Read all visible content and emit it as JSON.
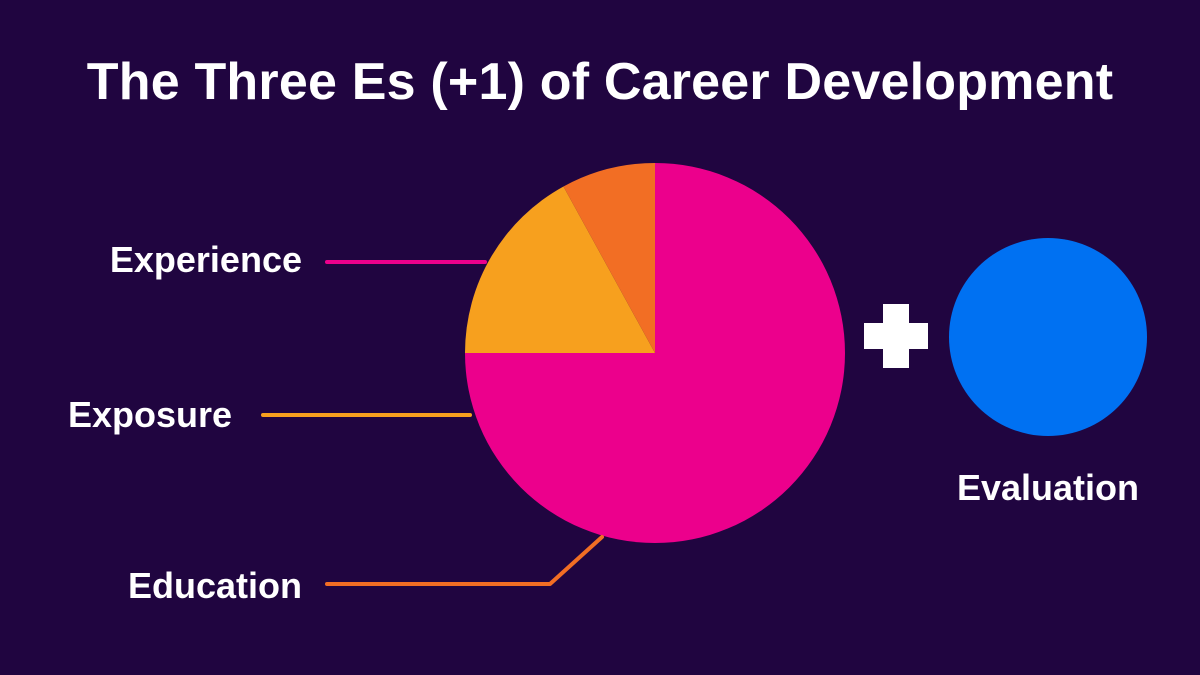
{
  "title": "The Three Es (+1) of Career Development",
  "chart_data": {
    "type": "pie",
    "title": "The Three Es (+1) of Career Development",
    "slices": [
      {
        "label": "Experience",
        "value": 75,
        "color": "#EC008C"
      },
      {
        "label": "Exposure",
        "value": 17,
        "color": "#F7A01E"
      },
      {
        "label": "Education",
        "value": 8,
        "color": "#F26E24"
      }
    ],
    "extra": {
      "label": "Evaluation",
      "symbol": "+",
      "color": "#0071F2"
    }
  }
}
